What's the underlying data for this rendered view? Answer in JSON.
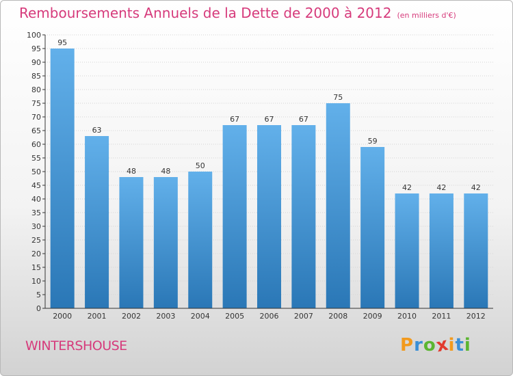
{
  "title": "Remboursements Annuels de la Dette de 2000 à 2012",
  "unit": "(en milliers d'€)",
  "commune": "WINTERSHOUSE",
  "logo": {
    "letters": [
      "P",
      "r",
      "o",
      "x",
      "i",
      "t",
      "i"
    ],
    "colors": [
      "#f29a1d",
      "#3a8fd6",
      "#5bb531",
      "#e23a2e",
      "#f29a1d",
      "#3a8fd6",
      "#5bb531"
    ]
  },
  "colors": {
    "bar_top": "#62b0ea",
    "bar_bottom": "#2a77b6",
    "text_accent": "#d63a7b"
  },
  "chart_data": {
    "type": "bar",
    "categories": [
      "2000",
      "2001",
      "2002",
      "2003",
      "2004",
      "2005",
      "2006",
      "2007",
      "2008",
      "2009",
      "2010",
      "2011",
      "2012"
    ],
    "values": [
      95,
      63,
      48,
      48,
      50,
      67,
      67,
      67,
      75,
      59,
      42,
      42,
      42
    ],
    "data_labels": [
      "95",
      "63",
      "48",
      "48",
      "50",
      "67",
      "67",
      "67",
      "75",
      "59",
      "42",
      "42",
      "42"
    ],
    "yticks": [
      "0",
      "5",
      "10",
      "15",
      "20",
      "25",
      "30",
      "35",
      "40",
      "45",
      "50",
      "55",
      "60",
      "65",
      "70",
      "75",
      "80",
      "85",
      "90",
      "95",
      "100"
    ],
    "ylim": [
      0,
      100
    ],
    "grid": true,
    "legend": "none"
  }
}
